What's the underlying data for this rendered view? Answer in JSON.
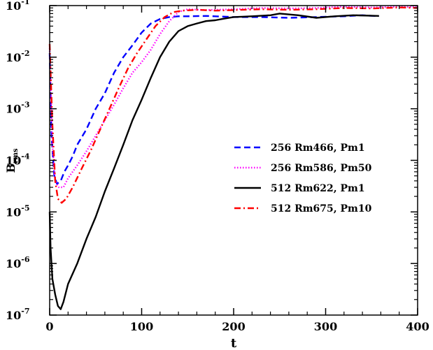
{
  "chart_data": {
    "type": "line",
    "xlabel": "t",
    "ylabel": {
      "main": "B",
      "sub": "rms"
    },
    "xlim": [
      0,
      400
    ],
    "ylim": [
      1e-07,
      0.1
    ],
    "yscale": "log",
    "grid": false,
    "legend_position": "center-right",
    "x_ticks": [
      {
        "value": 0,
        "label": "0"
      },
      {
        "value": 100,
        "label": "100"
      },
      {
        "value": 200,
        "label": "200"
      },
      {
        "value": 300,
        "label": "300"
      },
      {
        "value": 400,
        "label": "400"
      }
    ],
    "y_ticks": [
      {
        "value": 1e-07,
        "base": "10",
        "exp": "-7"
      },
      {
        "value": 1e-06,
        "base": "10",
        "exp": "-6"
      },
      {
        "value": 1e-05,
        "base": "10",
        "exp": "-5"
      },
      {
        "value": 0.0001,
        "base": "10",
        "exp": "-4"
      },
      {
        "value": 0.001,
        "base": "10",
        "exp": "-3"
      },
      {
        "value": 0.01,
        "base": "10",
        "exp": "-2"
      },
      {
        "value": 0.1,
        "base": "10",
        "exp": "-1"
      }
    ],
    "series": [
      {
        "name": "256 Rm466, Pm1",
        "color": "#0000ff",
        "style": "dashed",
        "points": [
          [
            0,
            0.012
          ],
          [
            2,
            0.0003
          ],
          [
            5,
            5e-05
          ],
          [
            8,
            3.5e-05
          ],
          [
            12,
            4e-05
          ],
          [
            16,
            6e-05
          ],
          [
            20,
            8e-05
          ],
          [
            25,
            0.00012
          ],
          [
            30,
            0.0002
          ],
          [
            40,
            0.0004
          ],
          [
            50,
            0.001
          ],
          [
            60,
            0.002
          ],
          [
            70,
            0.005
          ],
          [
            80,
            0.01
          ],
          [
            90,
            0.017
          ],
          [
            100,
            0.03
          ],
          [
            110,
            0.045
          ],
          [
            120,
            0.055
          ],
          [
            130,
            0.06
          ],
          [
            140,
            0.062
          ],
          [
            150,
            0.062
          ],
          [
            170,
            0.063
          ],
          [
            200,
            0.06
          ],
          [
            230,
            0.06
          ],
          [
            260,
            0.058
          ],
          [
            290,
            0.06
          ],
          [
            320,
            0.062
          ],
          [
            340,
            0.065
          ],
          [
            358,
            0.062
          ]
        ]
      },
      {
        "name": "256 Rm586, Pm50",
        "color": "#ff00ff",
        "style": "dotted",
        "points": [
          [
            0,
            0.015
          ],
          [
            3,
            0.0002
          ],
          [
            6,
            4e-05
          ],
          [
            10,
            3e-05
          ],
          [
            15,
            3e-05
          ],
          [
            20,
            4.5e-05
          ],
          [
            30,
            8e-05
          ],
          [
            40,
            0.00015
          ],
          [
            50,
            0.0003
          ],
          [
            60,
            0.0006
          ],
          [
            70,
            0.0012
          ],
          [
            80,
            0.0025
          ],
          [
            90,
            0.005
          ],
          [
            100,
            0.008
          ],
          [
            110,
            0.014
          ],
          [
            120,
            0.028
          ],
          [
            130,
            0.05
          ],
          [
            140,
            0.075
          ],
          [
            150,
            0.085
          ],
          [
            170,
            0.082
          ],
          [
            200,
            0.085
          ],
          [
            230,
            0.09
          ],
          [
            260,
            0.088
          ],
          [
            290,
            0.09
          ],
          [
            320,
            0.095
          ],
          [
            350,
            0.092
          ],
          [
            380,
            0.095
          ],
          [
            400,
            0.093
          ]
        ]
      },
      {
        "name": "512 Rm622, Pm1",
        "color": "#000000",
        "style": "solid",
        "points": [
          [
            0,
            1e-05
          ],
          [
            1,
            2e-06
          ],
          [
            3,
            5e-07
          ],
          [
            6,
            2.5e-07
          ],
          [
            9,
            1.5e-07
          ],
          [
            12,
            1.3e-07
          ],
          [
            15,
            1.8e-07
          ],
          [
            20,
            4e-07
          ],
          [
            30,
            1e-06
          ],
          [
            40,
            3e-06
          ],
          [
            50,
            8e-06
          ],
          [
            60,
            2.5e-05
          ],
          [
            70,
            7e-05
          ],
          [
            80,
            0.0002
          ],
          [
            90,
            0.0006
          ],
          [
            100,
            0.0015
          ],
          [
            110,
            0.004
          ],
          [
            120,
            0.01
          ],
          [
            130,
            0.02
          ],
          [
            140,
            0.032
          ],
          [
            150,
            0.04
          ],
          [
            160,
            0.045
          ],
          [
            170,
            0.05
          ],
          [
            180,
            0.052
          ],
          [
            190,
            0.056
          ],
          [
            200,
            0.06
          ],
          [
            220,
            0.062
          ],
          [
            240,
            0.065
          ],
          [
            250,
            0.07
          ],
          [
            270,
            0.065
          ],
          [
            290,
            0.058
          ],
          [
            310,
            0.062
          ],
          [
            330,
            0.065
          ],
          [
            358,
            0.063
          ]
        ]
      },
      {
        "name": "512 Rm675, Pm10",
        "color": "#ff0000",
        "style": "dashdot",
        "points": [
          [
            0,
            0.018
          ],
          [
            3,
            0.0005
          ],
          [
            6,
            4e-05
          ],
          [
            9,
            1.8e-05
          ],
          [
            13,
            1.5e-05
          ],
          [
            18,
            1.8e-05
          ],
          [
            25,
            3e-05
          ],
          [
            35,
            7e-05
          ],
          [
            45,
            0.00016
          ],
          [
            55,
            0.0004
          ],
          [
            65,
            0.001
          ],
          [
            75,
            0.0025
          ],
          [
            85,
            0.006
          ],
          [
            95,
            0.012
          ],
          [
            105,
            0.022
          ],
          [
            115,
            0.04
          ],
          [
            125,
            0.06
          ],
          [
            135,
            0.075
          ],
          [
            145,
            0.08
          ],
          [
            160,
            0.083
          ],
          [
            180,
            0.08
          ],
          [
            200,
            0.082
          ],
          [
            230,
            0.085
          ],
          [
            260,
            0.083
          ],
          [
            290,
            0.085
          ],
          [
            320,
            0.09
          ],
          [
            350,
            0.088
          ],
          [
            380,
            0.092
          ],
          [
            400,
            0.09
          ]
        ]
      }
    ]
  }
}
